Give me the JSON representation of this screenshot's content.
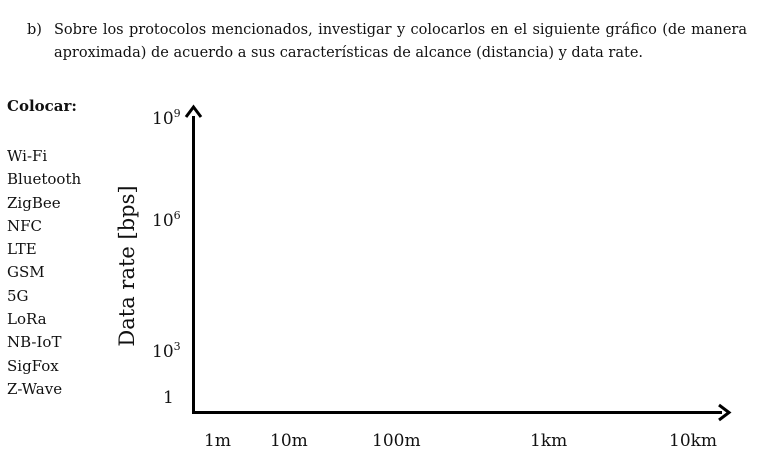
{
  "question": {
    "label": "b)",
    "text": "Sobre los protocolos mencionados, investigar y colocarlos en el siguiente gráfico (de manera aproximada) de acuerdo a sus características de alcance (distancia) y data rate."
  },
  "sidebar": {
    "title": "Colocar:",
    "protocols": [
      "Wi-Fi",
      "Bluetooth",
      "ZigBee",
      "NFC",
      "LTE",
      "GSM",
      "5G",
      "LoRa",
      "NB-IoT",
      "SigFox",
      "Z-Wave"
    ]
  },
  "chart_data": {
    "type": "scatter",
    "title": "",
    "ylabel": "Data rate [bps]",
    "xlabel": "",
    "x_ticks": [
      "1m",
      "10m",
      "100m",
      "1km",
      "10km"
    ],
    "y_ticks": [
      {
        "base": "1",
        "exp": ""
      },
      {
        "base": "10",
        "exp": "3"
      },
      {
        "base": "10",
        "exp": "6"
      },
      {
        "base": "10",
        "exp": "9"
      }
    ],
    "x_scale": "log",
    "y_scale": "log",
    "grid": false,
    "series": []
  }
}
